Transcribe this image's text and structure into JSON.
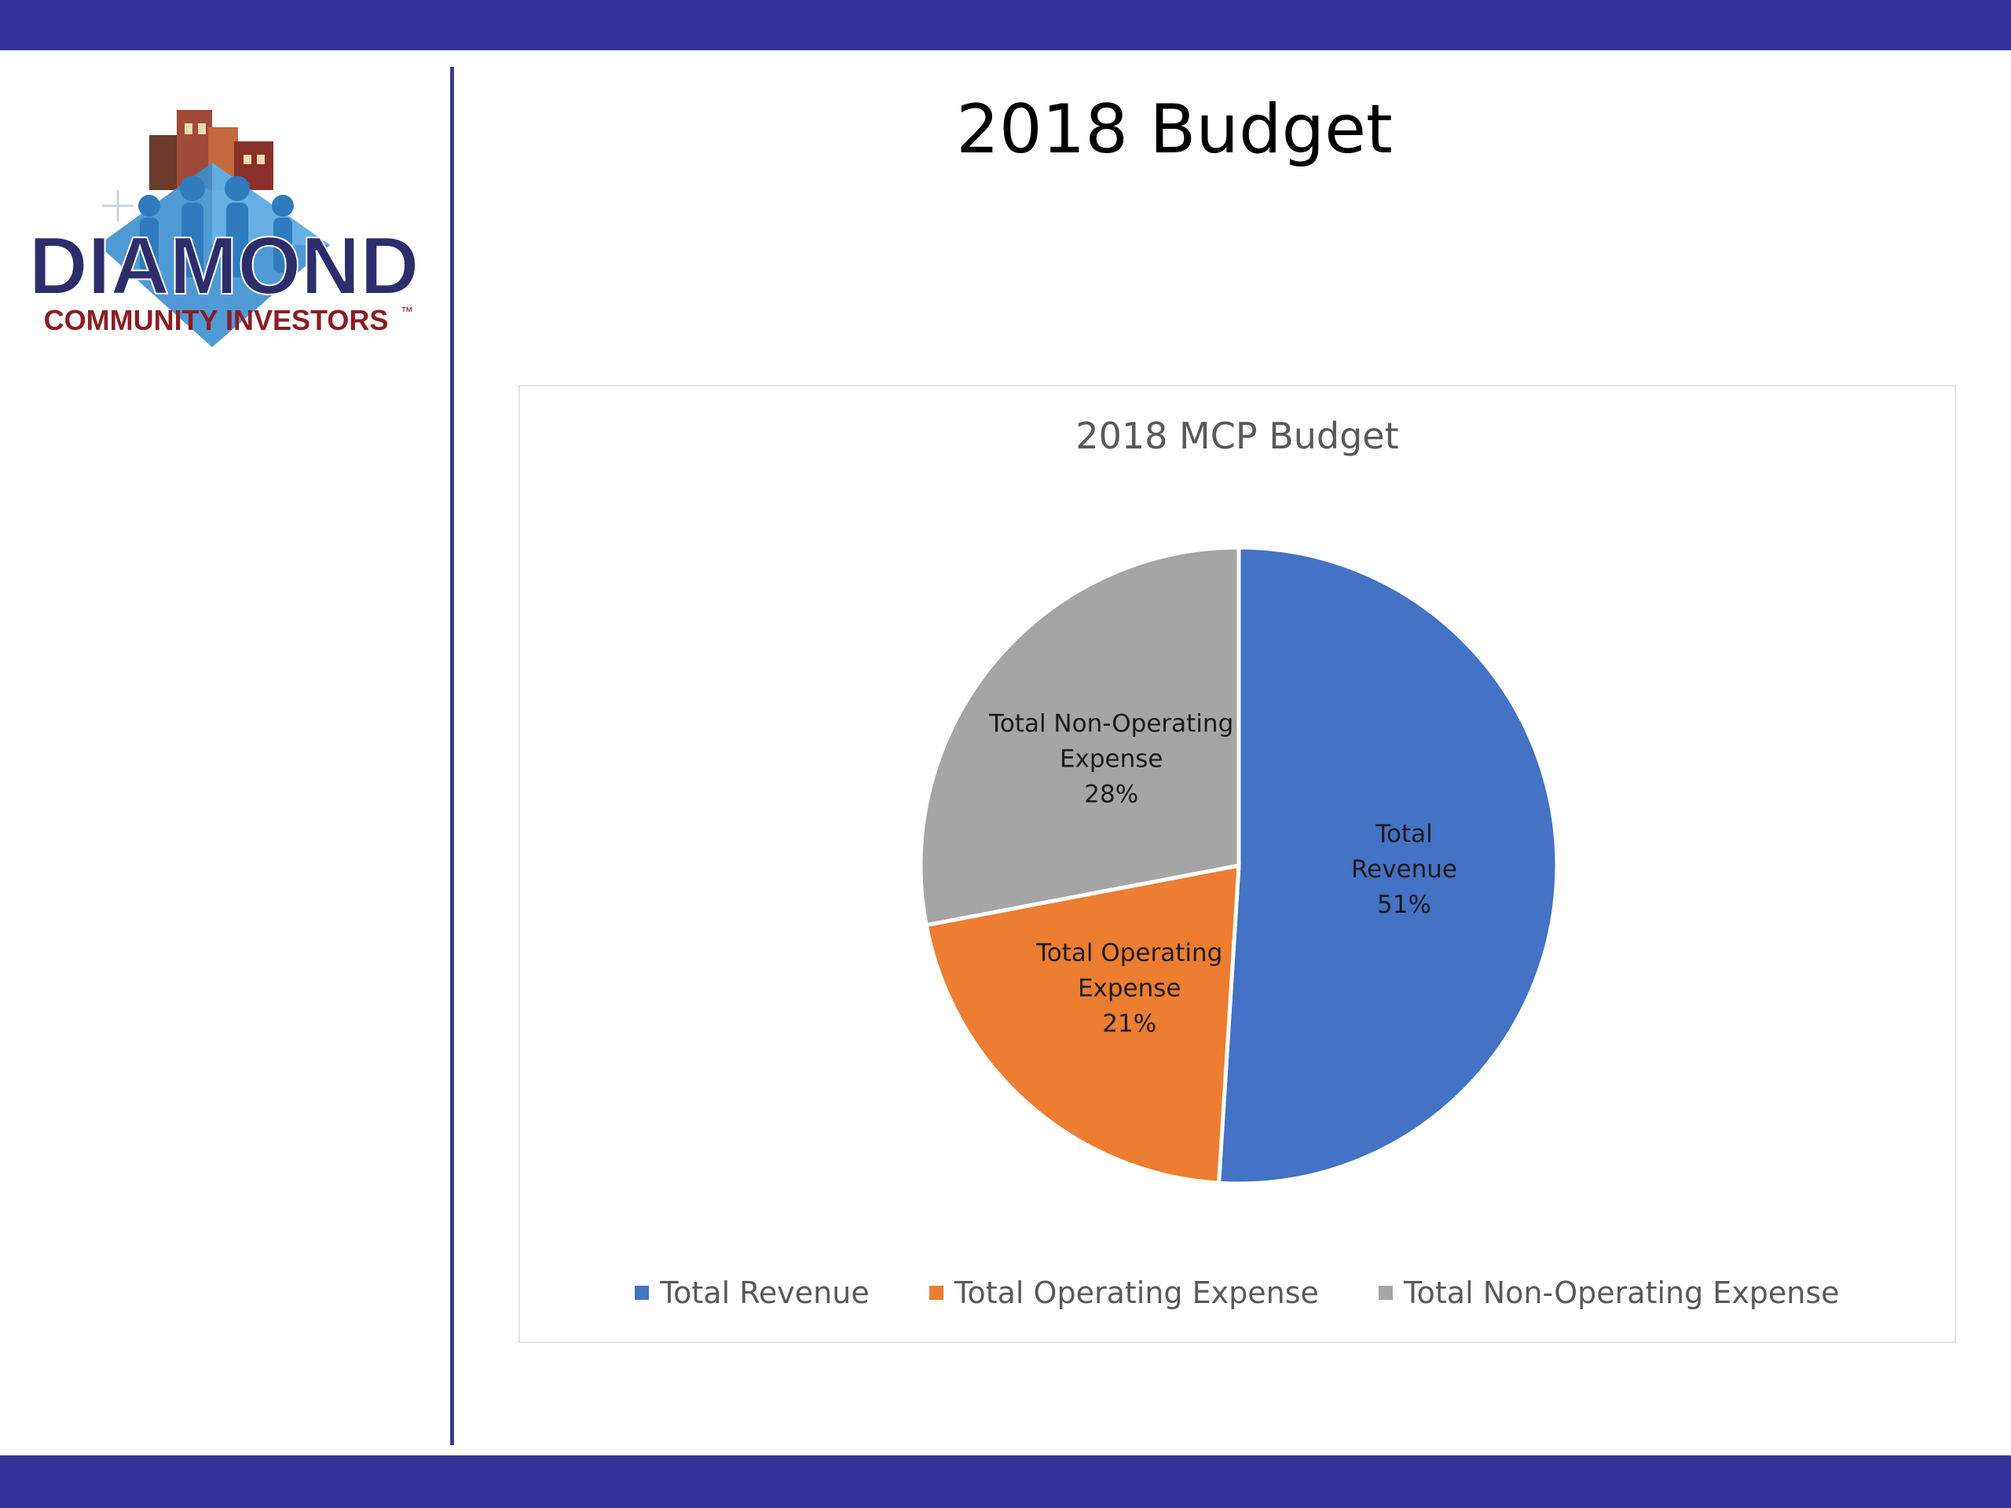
{
  "slide": {
    "title": "2018 Budget",
    "bar_color": "#353399",
    "divider_color": "#3b3a96"
  },
  "logo": {
    "wordmark": "DIAMOND",
    "tagline": "COMMUNITY INVESTORS",
    "trademark": "™",
    "colors": {
      "wordmark": "#2e2d6b",
      "tagline": "#8b1d24",
      "diamond": "#3c8fd0",
      "buildings": "#b0533a"
    }
  },
  "chart_data": {
    "type": "pie",
    "title": "2018 MCP Budget",
    "categories": [
      "Total Revenue",
      "Total Operating Expense",
      "Total Non-Operating Expense"
    ],
    "values": [
      51,
      21,
      28
    ],
    "value_suffix": "%",
    "colors": [
      "#4472c4",
      "#ed7d31",
      "#a5a5a5"
    ],
    "slice_labels": [
      [
        "Total",
        "Revenue",
        "51%"
      ],
      [
        "Total Operating",
        "Expense",
        "21%"
      ],
      [
        "Total Non-Operating",
        "Expense",
        "28%"
      ]
    ],
    "start_angle": "12 o'clock, clockwise",
    "legend_position": "bottom"
  }
}
